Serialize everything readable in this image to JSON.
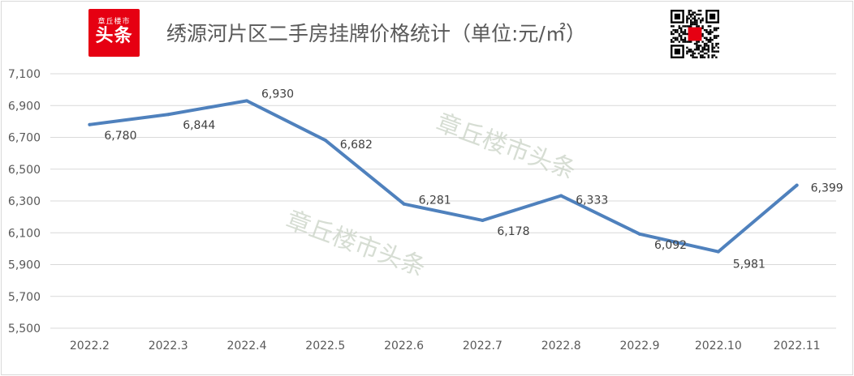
{
  "header": {
    "logo_line1": "章丘楼市",
    "logo_line2": "头条",
    "qr_icon": "qr-code-icon"
  },
  "watermark": "章丘楼市头条",
  "chart_data": {
    "type": "line",
    "title": "绣源河片区二手房挂牌价格统计（单位:元/㎡）",
    "categories": [
      "2022.2",
      "2022.3",
      "2022.4",
      "2022.5",
      "2022.6",
      "2022.7",
      "2022.8",
      "2022.9",
      "2022.10",
      "2022.11"
    ],
    "series": [
      {
        "values": [
          6780,
          6844,
          6930,
          6682,
          6281,
          6178,
          6333,
          6092,
          5981,
          6399
        ]
      }
    ],
    "data_labels": [
      "6,780",
      "6,844",
      "6,930",
      "6,682",
      "6,281",
      "6,178",
      "6,333",
      "6,092",
      "5,981",
      "6,399"
    ],
    "y_ticks": [
      "5,500",
      "5,700",
      "5,900",
      "6,100",
      "6,300",
      "6,500",
      "6,700",
      "6,900",
      "7,100"
    ],
    "ylim": [
      5500,
      7100
    ],
    "grid": true,
    "line_color": "#4f81bd",
    "grid_color": "#d9d9d9"
  }
}
